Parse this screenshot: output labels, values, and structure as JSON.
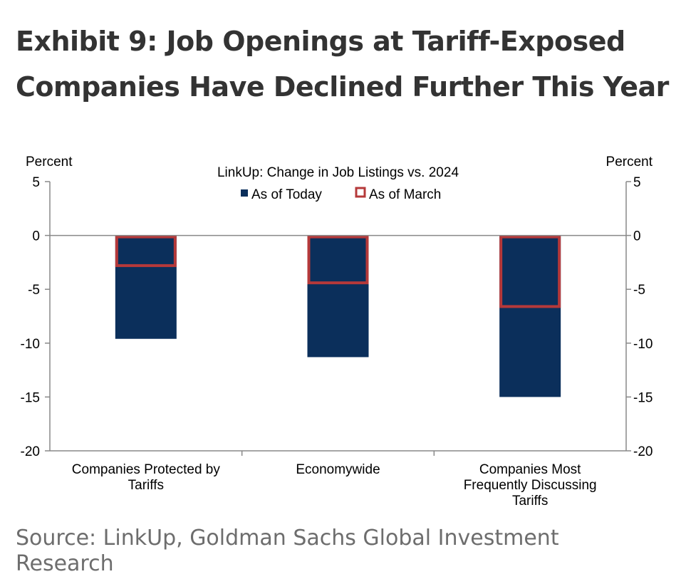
{
  "page": {
    "headline_line1": "Exhibit 9: Job Openings at Tariff-Exposed",
    "headline_line2": "Companies Have Declined Further This Year",
    "source": "Source: LinkUp, Goldman Sachs Global Investment Research"
  },
  "chart_data": {
    "type": "bar",
    "title": "LinkUp:  Change  in Job  Listings vs.  2024",
    "ylabel_left": "Percent",
    "ylabel_right": "Percent",
    "ylim": [
      -20,
      5
    ],
    "yticks": [
      5,
      0,
      -5,
      -10,
      -15,
      -20
    ],
    "grid": false,
    "legend_position": "top-center",
    "categories": [
      [
        "Companies Protected by",
        "Tariffs"
      ],
      [
        "Economywide"
      ],
      [
        "Companies Most",
        "Frequently Discussing",
        "Tariffs"
      ]
    ],
    "series": [
      {
        "name": "As of Today",
        "style": "filled",
        "color": "#0b2f5b",
        "values": [
          -9.6,
          -11.3,
          -15.0
        ]
      },
      {
        "name": "As of March",
        "style": "outline",
        "color": "#b5393a",
        "values": [
          -2.8,
          -4.4,
          -6.6
        ]
      }
    ]
  }
}
